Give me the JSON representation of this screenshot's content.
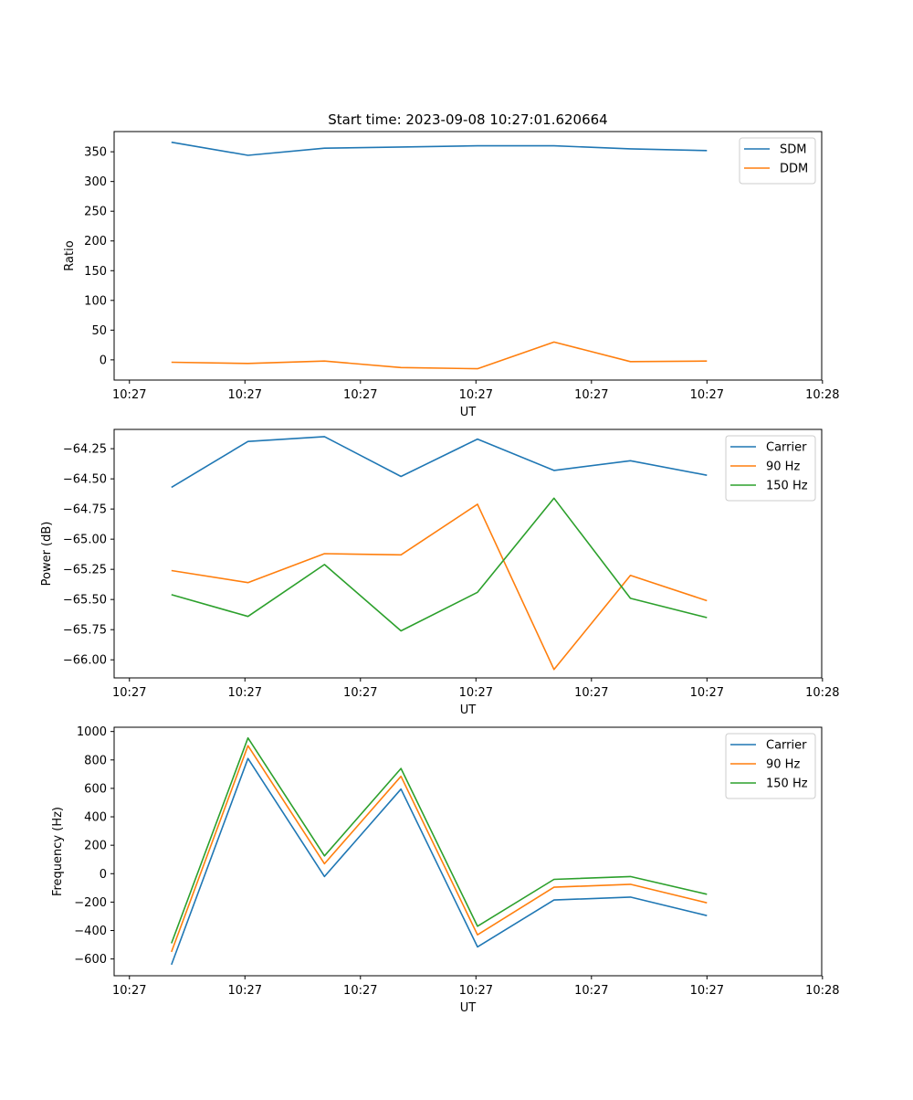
{
  "chart_data": [
    {
      "type": "line",
      "title": "Start time: 2023-09-08 10:27:01.620664",
      "xlabel": "UT",
      "ylabel": "Ratio",
      "x_index": [
        1,
        2,
        3,
        4,
        5,
        6,
        7,
        8
      ],
      "xlim": [
        0.25,
        9.5
      ],
      "xticks": [
        0.45,
        1.96,
        3.47,
        4.98,
        6.49,
        8.0,
        9.51
      ],
      "xticklabels": [
        "10:27",
        "10:27",
        "10:27",
        "10:27",
        "10:27",
        "10:27",
        "10:28"
      ],
      "ylim": [
        -34,
        384
      ],
      "yticks": [
        0,
        50,
        100,
        150,
        200,
        250,
        300,
        350
      ],
      "yticklabels": [
        "0",
        "50",
        "100",
        "150",
        "200",
        "250",
        "300",
        "350"
      ],
      "legend_position": "top-right",
      "series": [
        {
          "name": "SDM",
          "color": "#1f77b4",
          "values": [
            366,
            344,
            356,
            358,
            360,
            360,
            355,
            352
          ]
        },
        {
          "name": "DDM",
          "color": "#ff7f0e",
          "values": [
            -4,
            -6,
            -2,
            -13,
            -15,
            30,
            -3,
            -2
          ]
        }
      ]
    },
    {
      "type": "line",
      "title": "",
      "xlabel": "UT",
      "ylabel": "Power (dB)",
      "x_index": [
        1,
        2,
        3,
        4,
        5,
        6,
        7,
        8
      ],
      "xlim": [
        0.25,
        9.5
      ],
      "xticks": [
        0.45,
        1.96,
        3.47,
        4.98,
        6.49,
        8.0,
        9.51
      ],
      "xticklabels": [
        "10:27",
        "10:27",
        "10:27",
        "10:27",
        "10:27",
        "10:27",
        "10:28"
      ],
      "ylim": [
        -66.15,
        -64.09
      ],
      "yticks": [
        -66.0,
        -65.75,
        -65.5,
        -65.25,
        -65.0,
        -64.75,
        -64.5,
        -64.25
      ],
      "yticklabels": [
        "−66.00",
        "−65.75",
        "−65.50",
        "−65.25",
        "−65.00",
        "−64.75",
        "−64.50",
        "−64.25"
      ],
      "legend_position": "top-right",
      "series": [
        {
          "name": "Carrier",
          "color": "#1f77b4",
          "values": [
            -64.57,
            -64.19,
            -64.15,
            -64.48,
            -64.17,
            -64.43,
            -64.35,
            -64.47
          ]
        },
        {
          "name": "90 Hz",
          "color": "#ff7f0e",
          "values": [
            -65.26,
            -65.36,
            -65.12,
            -65.13,
            -64.71,
            -66.08,
            -65.3,
            -65.51
          ]
        },
        {
          "name": "150 Hz",
          "color": "#2ca02c",
          "values": [
            -65.46,
            -65.64,
            -65.21,
            -65.76,
            -65.44,
            -64.66,
            -65.49,
            -65.65
          ]
        }
      ]
    },
    {
      "type": "line",
      "title": "",
      "xlabel": "UT",
      "ylabel": "Frequency (Hz)",
      "x_index": [
        1,
        2,
        3,
        4,
        5,
        6,
        7,
        8
      ],
      "xlim": [
        0.25,
        9.5
      ],
      "xticks": [
        0.45,
        1.96,
        3.47,
        4.98,
        6.49,
        8.0,
        9.51
      ],
      "xticklabels": [
        "10:27",
        "10:27",
        "10:27",
        "10:27",
        "10:27",
        "10:27",
        "10:28"
      ],
      "ylim": [
        -718,
        1030
      ],
      "yticks": [
        -600,
        -400,
        -200,
        0,
        200,
        400,
        600,
        800,
        1000
      ],
      "yticklabels": [
        "−600",
        "−400",
        "−200",
        "0",
        "200",
        "400",
        "600",
        "800",
        "1000"
      ],
      "legend_position": "top-right",
      "series": [
        {
          "name": "Carrier",
          "color": "#1f77b4",
          "values": [
            -640,
            810,
            -20,
            595,
            -515,
            -185,
            -165,
            -295
          ]
        },
        {
          "name": "90 Hz",
          "color": "#ff7f0e",
          "values": [
            -550,
            900,
            70,
            685,
            -430,
            -95,
            -75,
            -205
          ]
        },
        {
          "name": "150 Hz",
          "color": "#2ca02c",
          "values": [
            -490,
            955,
            125,
            740,
            -370,
            -40,
            -20,
            -145
          ]
        }
      ]
    }
  ]
}
